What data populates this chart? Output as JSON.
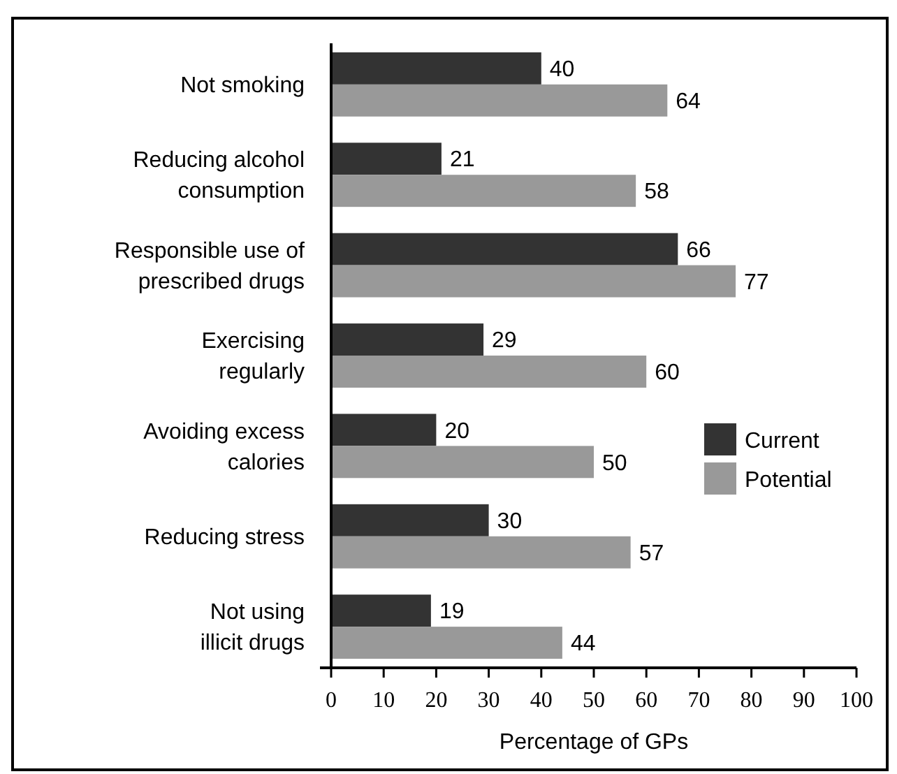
{
  "chart_data": {
    "type": "bar",
    "orientation": "horizontal",
    "xlabel": "Percentage of GPs",
    "categories": [
      "Not smoking",
      "Reducing alcohol\nconsumption",
      "Responsible use of\nprescribed drugs",
      "Exercising\nregularly",
      "Avoiding excess\ncalories",
      "Reducing stress",
      "Not using\nillicit drugs"
    ],
    "series": [
      {
        "name": "Current",
        "color": "#333333",
        "values": [
          40,
          21,
          66,
          29,
          20,
          30,
          19
        ]
      },
      {
        "name": "Potential",
        "color": "#999999",
        "values": [
          64,
          58,
          77,
          60,
          50,
          57,
          44
        ]
      }
    ],
    "xlim": [
      0,
      100
    ],
    "xticks": [
      0,
      10,
      20,
      30,
      40,
      50,
      60,
      70,
      80,
      90,
      100
    ],
    "data_labels": true,
    "legend": "right",
    "grid": false
  }
}
